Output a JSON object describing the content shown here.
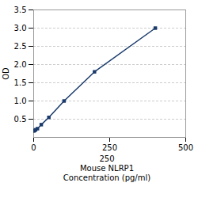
{
  "chart_data": {
    "type": "line",
    "x": [
      0,
      3.12,
      6.25,
      12.5,
      25,
      50,
      100,
      200,
      400
    ],
    "values": [
      0.175,
      0.19,
      0.21,
      0.24,
      0.35,
      0.55,
      1.0,
      1.8,
      3.0
    ],
    "color": "#1a3a6b",
    "marker": "square",
    "xlabel": "250\nMouse NLRP1\nConcentration (pg/ml)",
    "ylabel": "OD",
    "xlim": [
      0,
      500
    ],
    "xticks": [
      0,
      250,
      500
    ],
    "ylim": [
      0,
      3.5
    ],
    "yticks": [
      0.5,
      {
        "value": 1,
        "label": "1.0"
      },
      1.5,
      {
        "value": 2,
        "label": "2.0"
      },
      2.5,
      {
        "value": 3,
        "label": "3.0"
      },
      3.5
    ],
    "grid": true
  }
}
